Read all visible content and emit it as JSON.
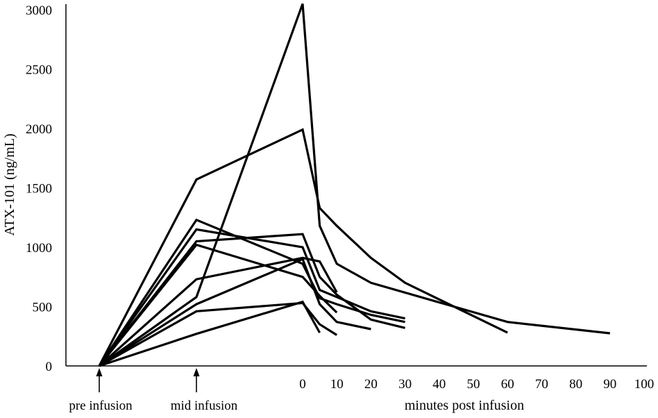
{
  "chart_data": {
    "type": "line",
    "title": "",
    "ylabel": "ATX-101 (ng/mL)",
    "xlabel": "minutes post infusion",
    "ylim": [
      0,
      3000
    ],
    "yticks": [
      0,
      500,
      1000,
      1500,
      2000,
      2500,
      3000
    ],
    "xticks": [
      0,
      10,
      20,
      30,
      40,
      50,
      60,
      70,
      80,
      90,
      100
    ],
    "xlim_minutes": [
      0,
      100
    ],
    "phase_labels": [
      "pre infusion",
      "mid infusion"
    ],
    "grid": false,
    "legend": "none",
    "x_points_note": "pre and mid are infusion phases; numbers are minutes post infusion",
    "series": [
      {
        "x": [
          "pre",
          "mid",
          0,
          5,
          10,
          20,
          60,
          90
        ],
        "values": [
          0,
          580,
          3050,
          1180,
          860,
          700,
          370,
          275
        ]
      },
      {
        "x": [
          "pre",
          "mid",
          0,
          5,
          10,
          20,
          30,
          60
        ],
        "values": [
          0,
          1570,
          1990,
          1330,
          1180,
          910,
          700,
          280
        ]
      },
      {
        "x": [
          "pre",
          "mid",
          0,
          5,
          10,
          20,
          30
        ],
        "values": [
          0,
          1230,
          860,
          570,
          520,
          430,
          370
        ]
      },
      {
        "x": [
          "pre",
          "mid",
          0,
          5,
          10,
          20,
          30
        ],
        "values": [
          0,
          1150,
          1000,
          640,
          580,
          460,
          400
        ]
      },
      {
        "x": [
          "pre",
          "mid",
          0,
          5,
          10,
          20,
          30
        ],
        "values": [
          0,
          1050,
          1110,
          750,
          600,
          390,
          320
        ]
      },
      {
        "x": [
          "pre",
          "mid",
          0,
          5,
          10
        ],
        "values": [
          0,
          1020,
          750,
          590,
          450
        ]
      },
      {
        "x": [
          "pre",
          "mid",
          0,
          5,
          10
        ],
        "values": [
          0,
          730,
          910,
          880,
          620
        ]
      },
      {
        "x": [
          "pre",
          "mid",
          0,
          5,
          10,
          20
        ],
        "values": [
          0,
          520,
          900,
          520,
          370,
          310
        ]
      },
      {
        "x": [
          "pre",
          "mid",
          0,
          5,
          10
        ],
        "values": [
          0,
          460,
          530,
          350,
          260
        ]
      },
      {
        "x": [
          "pre",
          "mid",
          0,
          5
        ],
        "values": [
          0,
          270,
          540,
          280
        ]
      }
    ]
  }
}
